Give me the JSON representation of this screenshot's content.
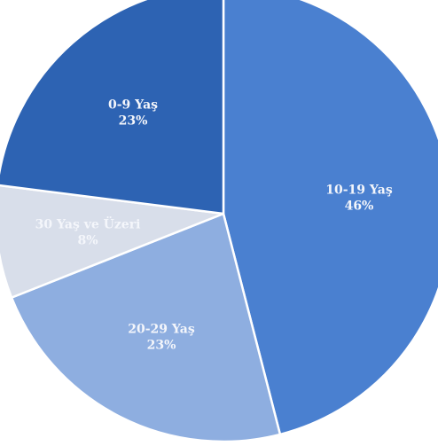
{
  "chart_data": {
    "type": "pie",
    "title": "",
    "slices": [
      {
        "label": "10-19 Yaş",
        "value": 46,
        "value_label": "46%",
        "color": "#4a80d0"
      },
      {
        "label": "20-29 Yaş",
        "value": 23,
        "value_label": "23%",
        "color": "#8eaee0"
      },
      {
        "label": "30 Yaş ve Üzeri",
        "value": 8,
        "value_label": "8%",
        "color": "#d8deea"
      },
      {
        "label": "0-9 Yaş",
        "value": 23,
        "value_label": "23%",
        "color": "#2d63b3"
      }
    ],
    "start_angle_deg": 0,
    "direction": "clockwise",
    "legend": "none"
  }
}
